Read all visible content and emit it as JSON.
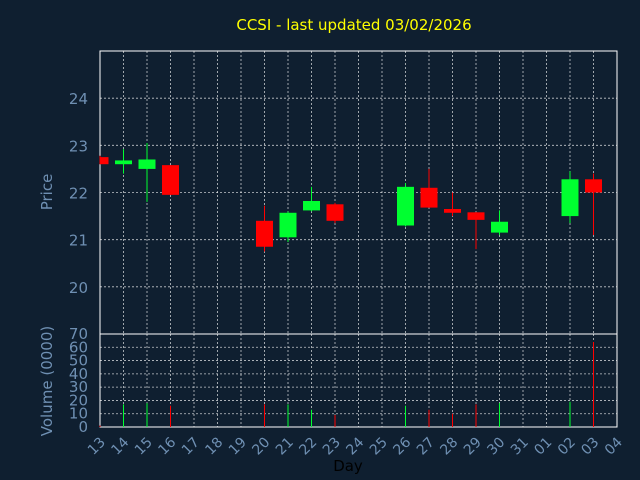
{
  "chart_data": {
    "type": "candlestick",
    "title": "CCSI - last updated 03/02/2026",
    "xlabel": "Day",
    "x_ticks": [
      "13",
      "14",
      "15",
      "16",
      "17",
      "18",
      "19",
      "20",
      "21",
      "22",
      "23",
      "24",
      "25",
      "26",
      "27",
      "28",
      "29",
      "30",
      "31",
      "01",
      "02",
      "03",
      "04"
    ],
    "grid": true,
    "price": {
      "ylabel": "Price",
      "ylim": [
        19,
        25
      ],
      "yticks": [
        20,
        21,
        22,
        23,
        24
      ],
      "candles": [
        {
          "day": "13",
          "open": 22.75,
          "high": 22.78,
          "low": 22.6,
          "close": 22.6
        },
        {
          "day": "14",
          "open": 22.6,
          "high": 22.92,
          "low": 22.4,
          "close": 22.68
        },
        {
          "day": "15",
          "open": 22.5,
          "high": 23.05,
          "low": 21.8,
          "close": 22.7
        },
        {
          "day": "16",
          "open": 22.58,
          "high": 22.58,
          "low": 21.95,
          "close": 21.95
        },
        {
          "day": "20",
          "open": 21.4,
          "high": 21.72,
          "low": 20.75,
          "close": 20.85
        },
        {
          "day": "21",
          "open": 21.05,
          "high": 21.6,
          "low": 20.95,
          "close": 21.57
        },
        {
          "day": "22",
          "open": 21.62,
          "high": 22.12,
          "low": 21.6,
          "close": 21.82
        },
        {
          "day": "23",
          "open": 21.75,
          "high": 21.78,
          "low": 21.35,
          "close": 21.4
        },
        {
          "day": "26",
          "open": 21.3,
          "high": 22.2,
          "low": 21.28,
          "close": 22.12
        },
        {
          "day": "27",
          "open": 22.1,
          "high": 22.5,
          "low": 21.68,
          "close": 21.68
        },
        {
          "day": "28",
          "open": 21.65,
          "high": 22.0,
          "low": 21.5,
          "close": 21.57
        },
        {
          "day": "29",
          "open": 21.58,
          "high": 21.58,
          "low": 20.8,
          "close": 21.42
        },
        {
          "day": "30",
          "open": 21.15,
          "high": 21.62,
          "low": 21.1,
          "close": 21.38
        },
        {
          "day": "02",
          "open": 21.5,
          "high": 22.45,
          "low": 21.35,
          "close": 22.28
        },
        {
          "day": "03",
          "open": 22.28,
          "high": 22.4,
          "low": 21.1,
          "close": 22.0
        }
      ]
    },
    "volume": {
      "ylabel": "Volume (0000)",
      "ylim": [
        0,
        70
      ],
      "yticks": [
        0,
        10,
        20,
        30,
        40,
        50,
        60,
        70
      ],
      "bars": [
        {
          "day": "13",
          "value": 1
        },
        {
          "day": "14",
          "value": 17
        },
        {
          "day": "15",
          "value": 18
        },
        {
          "day": "16",
          "value": 16
        },
        {
          "day": "20",
          "value": 17
        },
        {
          "day": "21",
          "value": 17
        },
        {
          "day": "22",
          "value": 13
        },
        {
          "day": "23",
          "value": 9
        },
        {
          "day": "26",
          "value": 16
        },
        {
          "day": "27",
          "value": 13
        },
        {
          "day": "28",
          "value": 10
        },
        {
          "day": "29",
          "value": 17
        },
        {
          "day": "30",
          "value": 18
        },
        {
          "day": "02",
          "value": 19
        },
        {
          "day": "03",
          "value": 64
        }
      ]
    },
    "colors": {
      "up": "#00ff30",
      "down": "#ff0000",
      "grid": "#ffffff",
      "background": "#0f1f30",
      "axis_text": "#6f90b3",
      "title": "#ffff00"
    }
  }
}
